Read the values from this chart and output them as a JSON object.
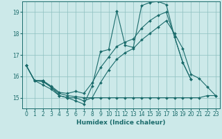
{
  "xlabel": "Humidex (Indice chaleur)",
  "background_color": "#cce9e9",
  "grid_color": "#8ec0c0",
  "line_color": "#1a6b6b",
  "xlim": [
    -0.5,
    23.5
  ],
  "ylim": [
    14.5,
    19.5
  ],
  "yticks": [
    15,
    16,
    17,
    18,
    19
  ],
  "xticks": [
    0,
    1,
    2,
    3,
    4,
    5,
    6,
    7,
    8,
    9,
    10,
    11,
    12,
    13,
    14,
    15,
    16,
    17,
    18,
    19,
    20,
    21,
    22,
    23
  ],
  "line1_x": [
    0,
    1,
    2,
    3,
    4,
    5,
    6,
    7,
    8,
    9,
    10,
    11,
    12,
    13,
    14,
    15,
    16,
    17,
    18,
    19,
    20
  ],
  "line1_y": [
    16.5,
    15.8,
    15.8,
    15.5,
    15.1,
    15.0,
    14.85,
    14.7,
    15.55,
    17.15,
    17.25,
    19.05,
    17.45,
    17.35,
    19.3,
    19.45,
    19.5,
    19.35,
    17.85,
    16.65,
    15.85
  ],
  "line2_x": [
    0,
    1,
    2,
    3,
    4,
    5,
    6,
    7,
    8,
    9,
    10,
    11,
    12,
    13,
    14,
    15,
    16,
    17,
    18,
    19,
    20
  ],
  "line2_y": [
    16.5,
    15.8,
    15.8,
    15.55,
    15.25,
    15.2,
    15.3,
    15.2,
    15.7,
    16.4,
    16.9,
    17.4,
    17.6,
    17.75,
    18.25,
    18.6,
    18.85,
    19.0,
    17.85,
    16.65,
    15.85
  ],
  "line3_x": [
    0,
    1,
    2,
    3,
    4,
    5,
    6,
    7,
    8,
    9,
    10,
    11,
    12,
    13,
    14,
    15,
    16,
    17,
    18,
    19,
    20,
    21,
    22,
    23
  ],
  "line3_y": [
    16.5,
    15.8,
    15.75,
    15.5,
    15.2,
    15.1,
    15.05,
    15.0,
    15.0,
    15.0,
    15.0,
    15.0,
    15.0,
    15.0,
    15.0,
    15.0,
    15.0,
    15.0,
    15.0,
    15.0,
    15.0,
    15.0,
    15.1,
    15.1
  ],
  "line4_x": [
    0,
    1,
    2,
    3,
    4,
    5,
    6,
    7,
    8,
    9,
    10,
    11,
    12,
    13,
    14,
    15,
    16,
    17,
    18,
    19,
    20,
    21,
    22,
    23
  ],
  "line4_y": [
    16.5,
    15.8,
    15.6,
    15.4,
    15.1,
    15.0,
    15.0,
    14.85,
    15.0,
    15.7,
    16.3,
    16.8,
    17.1,
    17.3,
    17.7,
    18.0,
    18.3,
    18.6,
    18.0,
    17.3,
    16.1,
    15.9,
    15.5,
    15.1
  ]
}
